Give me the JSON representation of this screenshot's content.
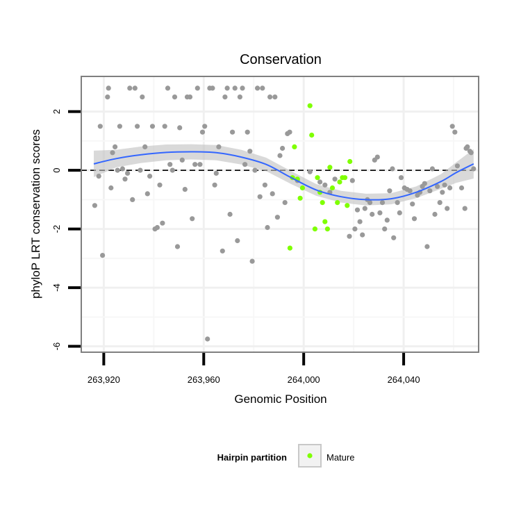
{
  "chart_data": {
    "type": "scatter",
    "title": "Conservation",
    "xlabel": "Genomic Position",
    "ylabel": "phyloP LRT conservation scores",
    "xlim": [
      263911,
      264070
    ],
    "ylim": [
      -6.2,
      3.2
    ],
    "x_ticks": [
      263920,
      263960,
      264000,
      264040
    ],
    "x_tick_labels": [
      "263,920",
      "263,960",
      "264,000",
      "264,040"
    ],
    "y_ticks": [
      -6,
      -4,
      -2,
      0,
      2
    ],
    "y_tick_labels": [
      "-6",
      "-4",
      "-2",
      "0",
      "2"
    ],
    "grid": true,
    "reference_line": {
      "y": 0,
      "style": "dashed",
      "color": "#000000"
    },
    "legend": {
      "title": "Hairpin partition",
      "position": "bottom",
      "entries": [
        {
          "label": "Mature",
          "color": "#7fff00"
        }
      ]
    },
    "colors": {
      "other": "#999999",
      "mature": "#7fff00",
      "smooth": "#3366ff",
      "ribbon": "#bfbfbf"
    },
    "series": [
      {
        "group": "other",
        "points": [
          [
            263916.4,
            -1.2
          ],
          [
            263918,
            -0.2
          ],
          [
            263918.6,
            1.5
          ],
          [
            263919.5,
            -2.9
          ],
          [
            263921.5,
            2.5
          ],
          [
            263921.9,
            2.8
          ],
          [
            263922.9,
            -0.6
          ],
          [
            263923.5,
            0.6
          ],
          [
            263924.5,
            0.8
          ],
          [
            263925.5,
            0
          ],
          [
            263926.4,
            1.5
          ],
          [
            263927.5,
            0.05
          ],
          [
            263928.5,
            -0.3
          ],
          [
            263929.5,
            -0.1
          ],
          [
            263930.4,
            2.8
          ],
          [
            263931.5,
            -1
          ],
          [
            263932.5,
            2.8
          ],
          [
            263933.4,
            1.5
          ],
          [
            263934.6,
            0
          ],
          [
            263935.4,
            2.5
          ],
          [
            263936.5,
            0.8
          ],
          [
            263937.5,
            -0.8
          ],
          [
            263938.4,
            -0.2
          ],
          [
            263939.5,
            1.5
          ],
          [
            263940.5,
            -2
          ],
          [
            263941.4,
            -1.95
          ],
          [
            263942.4,
            -0.5
          ],
          [
            263943.5,
            -1.8
          ],
          [
            263944.4,
            1.5
          ],
          [
            263945.6,
            2.8
          ],
          [
            263946.5,
            0.2
          ],
          [
            263947.5,
            0
          ],
          [
            263948.4,
            2.5
          ],
          [
            263949.5,
            -2.6
          ],
          [
            263950.4,
            1.45
          ],
          [
            263951.4,
            0.35
          ],
          [
            263952.5,
            -0.65
          ],
          [
            263953.4,
            2.5
          ],
          [
            263954.5,
            2.5
          ],
          [
            263955.4,
            -1.65
          ],
          [
            263956.5,
            0.2
          ],
          [
            263957.5,
            2.8
          ],
          [
            263958.5,
            0.2
          ],
          [
            263959.5,
            1.3
          ],
          [
            263960.4,
            1.5
          ],
          [
            263961.5,
            -5.75
          ],
          [
            263962.4,
            2.8
          ],
          [
            263963.5,
            2.8
          ],
          [
            263964.4,
            -0.5
          ],
          [
            263965,
            -0.1
          ],
          [
            263966,
            0.8
          ],
          [
            263967.5,
            -2.75
          ],
          [
            263968.5,
            2.5
          ],
          [
            263969.4,
            2.8
          ],
          [
            263970.5,
            -1.5
          ],
          [
            263971.5,
            1.3
          ],
          [
            263972.5,
            2.8
          ],
          [
            263973.5,
            -2.4
          ],
          [
            263974.5,
            2.5
          ],
          [
            263975.5,
            2.8
          ],
          [
            263976.5,
            0.2
          ],
          [
            263977.5,
            1.3
          ],
          [
            263978.5,
            0.65
          ],
          [
            263979.4,
            -3.1
          ],
          [
            263980.5,
            0
          ],
          [
            263981.5,
            2.8
          ],
          [
            263982.5,
            -0.9
          ],
          [
            263983.5,
            2.8
          ],
          [
            263984.5,
            -0.5
          ],
          [
            263985.5,
            -1.95
          ],
          [
            263986.5,
            2.5
          ],
          [
            263987.5,
            -0.8
          ],
          [
            263988.5,
            2.5
          ],
          [
            263989.5,
            -1.6
          ],
          [
            263990.5,
            0.5
          ],
          [
            263991.5,
            0.75
          ],
          [
            263992.5,
            -1.1
          ],
          [
            263993.5,
            1.25
          ],
          [
            263994.4,
            1.3
          ],
          [
            263997.5,
            -0.35
          ],
          [
            264002.5,
            -0.05
          ],
          [
            264006.5,
            -0.4
          ],
          [
            264008.5,
            -0.5
          ],
          [
            264010.5,
            -0.75
          ],
          [
            264012.5,
            -0.3
          ],
          [
            264018.3,
            -2.25
          ],
          [
            264019.5,
            -0.35
          ],
          [
            264020.5,
            -2
          ],
          [
            264021.5,
            -1.35
          ],
          [
            264022.5,
            -1.75
          ],
          [
            264023.5,
            -2.2
          ],
          [
            264024.5,
            -1.3
          ],
          [
            264025.5,
            -1
          ],
          [
            264026.5,
            -1.1
          ],
          [
            264027.4,
            -1.5
          ],
          [
            264028.4,
            0.35
          ],
          [
            264029.5,
            0.45
          ],
          [
            264030.5,
            -1.45
          ],
          [
            264031.5,
            -1.1
          ],
          [
            264032.4,
            -2
          ],
          [
            264033.4,
            -1.7
          ],
          [
            264034.4,
            -0.7
          ],
          [
            264035.5,
            0.05
          ],
          [
            264036,
            -2.3
          ],
          [
            264037.5,
            -1.1
          ],
          [
            264038.4,
            -1.45
          ],
          [
            264039,
            -0.25
          ],
          [
            264040.3,
            -0.6
          ],
          [
            264041.4,
            -0.65
          ],
          [
            264042.5,
            -0.7
          ],
          [
            264043.5,
            -1.15
          ],
          [
            264044.3,
            -1.65
          ],
          [
            264045.5,
            -0.85
          ],
          [
            264046.5,
            -0.75
          ],
          [
            264047.5,
            -0.55
          ],
          [
            264048.4,
            -0.45
          ],
          [
            264049.4,
            -2.6
          ],
          [
            264050.5,
            -0.7
          ],
          [
            264051.5,
            0.05
          ],
          [
            264052.5,
            -1.5
          ],
          [
            264053.5,
            -0.55
          ],
          [
            264054.5,
            -1.1
          ],
          [
            264055.5,
            -0.75
          ],
          [
            264056.4,
            -0.5
          ],
          [
            264057.4,
            -1.3
          ],
          [
            264058.5,
            -0.6
          ],
          [
            264059.5,
            1.5
          ],
          [
            264060.5,
            1.3
          ],
          [
            264061.5,
            0.15
          ],
          [
            264063.2,
            -0.6
          ],
          [
            264064.5,
            -1.3
          ],
          [
            264065,
            0.75
          ],
          [
            264065.5,
            0.8
          ],
          [
            264066.5,
            0.65
          ],
          [
            264067,
            0.6
          ],
          [
            264068,
            0.05
          ]
        ]
      },
      {
        "group": "mature",
        "points": [
          [
            263994.5,
            -2.65
          ],
          [
            263995.5,
            -0.25
          ],
          [
            263996.3,
            0.8
          ],
          [
            263997.5,
            -0.3
          ],
          [
            263998.6,
            -0.95
          ],
          [
            263999.5,
            -0.6
          ],
          [
            264002.5,
            2.2
          ],
          [
            264003.2,
            1.2
          ],
          [
            264004.5,
            -2
          ],
          [
            264005.5,
            -0.25
          ],
          [
            264006.5,
            -0.75
          ],
          [
            264007.5,
            -1.1
          ],
          [
            264008.5,
            -1.75
          ],
          [
            264009.5,
            -2
          ],
          [
            264010.5,
            0.1
          ],
          [
            264011.5,
            -0.6
          ],
          [
            264013.5,
            -1.1
          ],
          [
            264014.4,
            -0.4
          ],
          [
            264015.5,
            -0.25
          ],
          [
            264016.5,
            -0.25
          ],
          [
            264017.4,
            -1.2
          ],
          [
            264018.5,
            0.3
          ]
        ]
      }
    ],
    "smooth": {
      "x": [
        263916,
        263925,
        263935,
        263945,
        263955,
        263965,
        263975,
        263985,
        263995,
        264005,
        264015,
        264025,
        264035,
        264045,
        264055,
        264061,
        264068
      ],
      "y": [
        0.22,
        0.4,
        0.53,
        0.61,
        0.63,
        0.6,
        0.45,
        0.2,
        -0.25,
        -0.67,
        -0.9,
        -1.0,
        -0.97,
        -0.75,
        -0.38,
        -0.08,
        0.22
      ],
      "ci_half": [
        0.45,
        0.3,
        0.28,
        0.27,
        0.26,
        0.26,
        0.25,
        0.23,
        0.22,
        0.2,
        0.2,
        0.2,
        0.19,
        0.2,
        0.25,
        0.35,
        0.5
      ]
    }
  }
}
